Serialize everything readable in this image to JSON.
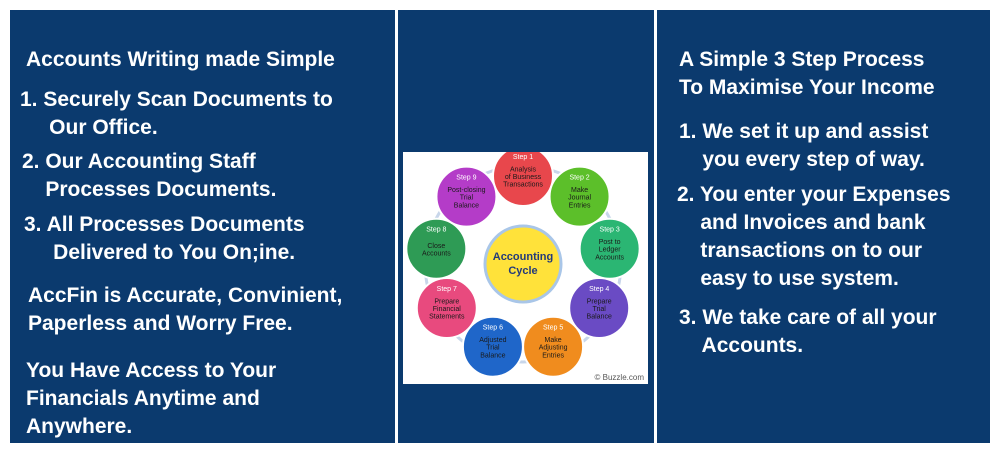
{
  "left": {
    "heading": "Accounts Writing made Simple",
    "steps": [
      "1. Securely Scan Documents to\n     Our Office.",
      "2. Our Accounting Staff\n    Processes Documents.",
      "3. All Processes Documents\n     Delivered to You On;ine."
    ],
    "para1": "AccFin is Accurate, Convinient,\nPaperless and Worry Free.",
    "para2": "You Have Access to Your\nFinancials Anytime and\nAnywhere."
  },
  "right": {
    "heading": "A Simple 3 Step Process\nTo Maximise Your Income",
    "steps": [
      "1. We set it up and assist\n    you every step of way.",
      "2. You enter your Expenses\n    and Invoices and bank\n    transactions on to our\n    easy to use system.",
      "3. We take care of all your\n    Accounts."
    ]
  },
  "diagram": {
    "center": "Accounting\nCycle",
    "credit": "© Buzzle.com",
    "steps": [
      {
        "step": "Step 1",
        "text": "Analysis\nof Business\nTransactions",
        "color": "#e8474c"
      },
      {
        "step": "Step 2",
        "text": "Make\nJournal\nEntries",
        "color": "#5cbf2a"
      },
      {
        "step": "Step 3",
        "text": "Post to\nLedger\nAccounts",
        "color": "#2bb673"
      },
      {
        "step": "Step 4",
        "text": "Prepare\nTrial\nBalance",
        "color": "#6a4bc4"
      },
      {
        "step": "Step 5",
        "text": "Make\nAdjusting\nEntries",
        "color": "#f08c1e"
      },
      {
        "step": "Step 6",
        "text": "Adjusted\nTrial\nBalance",
        "color": "#1f66c9"
      },
      {
        "step": "Step 7",
        "text": "Prepare\nFinancial\nStatements",
        "color": "#e84a7e"
      },
      {
        "step": "Step 8",
        "text": "Close\nAccounts",
        "color": "#2e9b55"
      },
      {
        "step": "Step 9",
        "text": "Post-closing\nTrial\nBalance",
        "color": "#b43cc8"
      }
    ]
  },
  "colors": {
    "panel": "#0b3a6e",
    "center_fill": "#ffe23a",
    "arrow": "#c8d6ea"
  }
}
